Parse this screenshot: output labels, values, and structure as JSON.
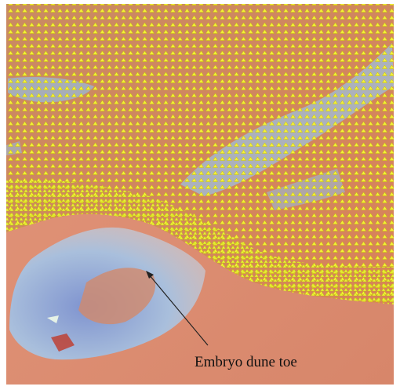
{
  "annotation": {
    "label": "Embryo dune toe"
  }
}
